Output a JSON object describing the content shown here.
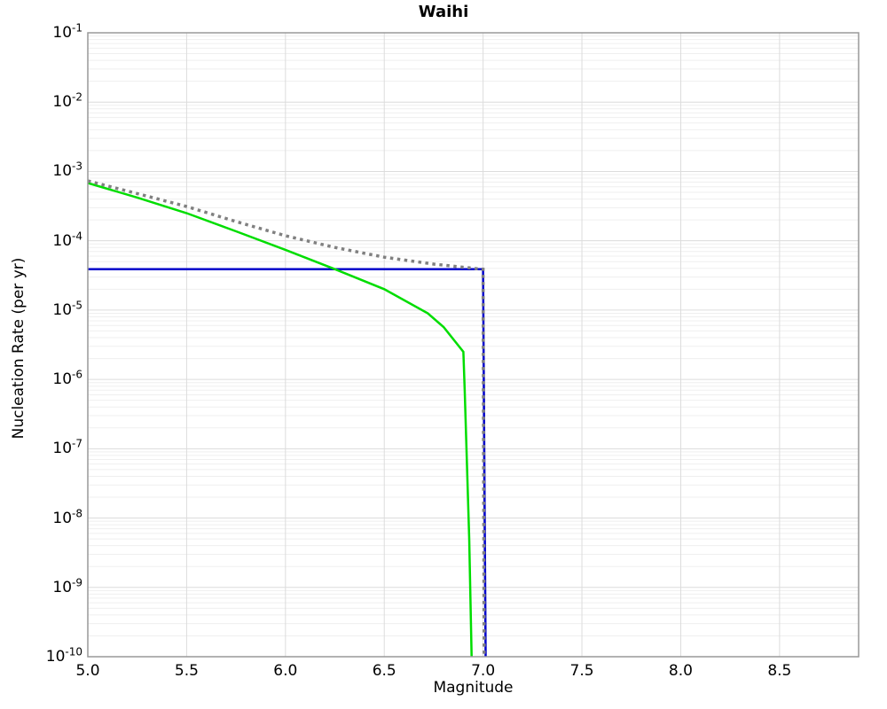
{
  "chart_data": {
    "type": "line",
    "title": "Waihi",
    "xlabel": "Magnitude",
    "ylabel": "Nucleation Rate (per yr)",
    "xlim": [
      5.0,
      8.9
    ],
    "ylim": [
      1e-10,
      0.1
    ],
    "yscale": "log",
    "grid": "major+minor",
    "legend": "none",
    "x_tick_values": [
      5.0,
      5.5,
      6.0,
      6.5,
      7.0,
      7.5,
      8.0,
      8.5
    ],
    "x_tick_labels": [
      "5.0",
      "5.5",
      "6.0",
      "6.5",
      "7.0",
      "7.5",
      "8.0",
      "8.5"
    ],
    "y_tick_base": "10",
    "y_tick_exponents": [
      -1,
      -2,
      -3,
      -4,
      -5,
      -6,
      -7,
      -8,
      -9,
      -10
    ],
    "colors": {
      "background": "#ffffff",
      "border": "#999999",
      "grid_major": "#dcdcdc",
      "grid_minor": "#efefef",
      "blue_series": "#0000cc",
      "green_series": "#00dd00",
      "gray_series": "#808080"
    },
    "series": [
      {
        "name": "series-blue-truncated-constant",
        "color": "#0000cc",
        "style": "solid",
        "width": 2.5,
        "points": [
          [
            5.0,
            3.9e-05
          ],
          [
            7.0,
            3.9e-05
          ],
          [
            7.013,
            1e-10
          ]
        ]
      },
      {
        "name": "series-green-curve",
        "color": "#00dd00",
        "style": "solid",
        "width": 2.5,
        "points": [
          [
            5.0,
            0.00068
          ],
          [
            5.25,
            0.00042
          ],
          [
            5.5,
            0.00025
          ],
          [
            5.75,
            0.000137
          ],
          [
            6.0,
            7.4e-05
          ],
          [
            6.25,
            3.9e-05
          ],
          [
            6.5,
            2e-05
          ],
          [
            6.72,
            9e-06
          ],
          [
            6.8,
            5.7e-06
          ],
          [
            6.9,
            2.5e-06
          ],
          [
            6.907,
            7e-07
          ],
          [
            6.93,
            5e-09
          ],
          [
            6.942,
            1e-10
          ]
        ]
      },
      {
        "name": "series-gray-dotted-tapered",
        "color": "#808080",
        "style": "dotted",
        "width": 3.5,
        "points": [
          [
            5.0,
            0.00073
          ],
          [
            5.25,
            0.00048
          ],
          [
            5.5,
            0.000312
          ],
          [
            5.75,
            0.000189
          ],
          [
            6.0,
            0.000118
          ],
          [
            6.25,
            8e-05
          ],
          [
            6.5,
            5.8e-05
          ],
          [
            6.75,
            4.6e-05
          ],
          [
            6.97,
            3.95e-05
          ],
          [
            7.0,
            3.9e-05
          ],
          [
            7.005,
            1e-10
          ]
        ]
      }
    ]
  }
}
